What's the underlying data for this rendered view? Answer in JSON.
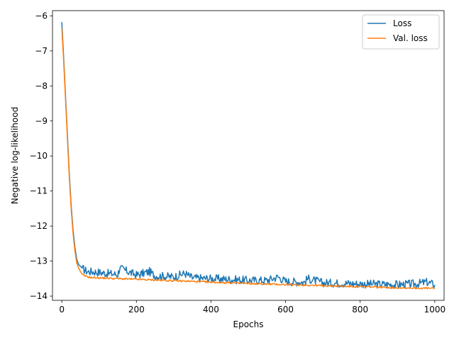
{
  "chart_data": {
    "type": "line",
    "title": "",
    "xlabel": "Epochs",
    "ylabel": "Negative log-likelihood",
    "xlim": [
      -25,
      1025
    ],
    "ylim": [
      -14.12,
      -5.85
    ],
    "xticks": [
      0,
      200,
      400,
      600,
      800,
      1000
    ],
    "yticks": [
      -14,
      -13,
      -12,
      -11,
      -10,
      -9,
      -8,
      -7,
      -6
    ],
    "xtick_labels": [
      "0",
      "200",
      "400",
      "600",
      "800",
      "1000"
    ],
    "ytick_labels": [
      "−14",
      "−13",
      "−12",
      "−11",
      "−10",
      "−9",
      "−8",
      "−7",
      "−6"
    ],
    "grid": false,
    "legend": "top-right",
    "series": [
      {
        "name": "Loss",
        "color": "#1f77b4",
        "x": [
          0,
          5,
          10,
          15,
          20,
          25,
          30,
          35,
          40,
          45,
          50,
          55,
          60,
          70,
          80,
          100,
          120,
          150,
          155,
          200,
          235,
          250,
          300,
          330,
          350,
          400,
          450,
          500,
          550,
          580,
          600,
          650,
          660,
          700,
          750,
          800,
          850,
          900,
          950,
          980,
          1000
        ],
        "y": [
          -6.18,
          -7.2,
          -8.3,
          -9.4,
          -10.5,
          -11.4,
          -12.1,
          -12.6,
          -12.95,
          -13.1,
          -13.15,
          -13.2,
          -13.25,
          -13.3,
          -13.3,
          -13.32,
          -13.35,
          -13.38,
          -13.2,
          -13.4,
          -13.3,
          -13.42,
          -13.45,
          -13.35,
          -13.48,
          -13.5,
          -13.52,
          -13.55,
          -13.55,
          -13.45,
          -13.58,
          -13.6,
          -13.5,
          -13.62,
          -13.63,
          -13.65,
          -13.66,
          -13.67,
          -13.65,
          -13.6,
          -13.68
        ]
      },
      {
        "name": "Val. loss",
        "color": "#ff7f0e",
        "x": [
          0,
          5,
          10,
          15,
          20,
          25,
          30,
          35,
          40,
          45,
          50,
          55,
          60,
          70,
          80,
          100,
          150,
          200,
          300,
          400,
          500,
          600,
          700,
          800,
          900,
          1000
        ],
        "y": [
          -6.35,
          -7.3,
          -8.4,
          -9.5,
          -10.6,
          -11.5,
          -12.2,
          -12.7,
          -13.05,
          -13.2,
          -13.3,
          -13.38,
          -13.42,
          -13.45,
          -13.47,
          -13.48,
          -13.5,
          -13.52,
          -13.56,
          -13.6,
          -13.64,
          -13.67,
          -13.7,
          -13.73,
          -13.76,
          -13.78
        ]
      }
    ]
  }
}
